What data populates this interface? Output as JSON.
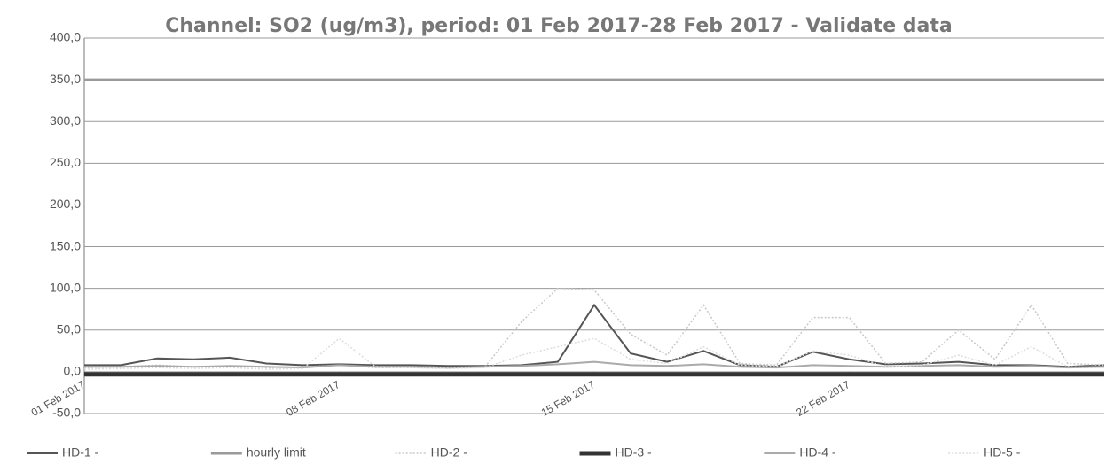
{
  "chart_data": {
    "type": "line",
    "title": "Channel: SO2 (ug/m3), period: 01 Feb 2017-28 Feb 2017 - Validate data",
    "x": [
      0,
      1,
      2,
      3,
      4,
      5,
      6,
      7,
      8,
      9,
      10,
      11,
      12,
      13,
      14,
      15,
      16,
      17,
      18,
      19,
      20,
      21,
      22,
      23,
      24,
      25,
      26,
      27,
      28
    ],
    "xlim": [
      0,
      28
    ],
    "xticks": [
      {
        "value": 0,
        "label": "01 Feb 2017"
      },
      {
        "value": 7,
        "label": "08 Feb 2017"
      },
      {
        "value": 14,
        "label": "15 Feb 2017"
      },
      {
        "value": 21,
        "label": "22 Feb 2017"
      }
    ],
    "ylim": [
      -50,
      400
    ],
    "yticks": [
      {
        "value": -50,
        "label": "-50,0"
      },
      {
        "value": 0,
        "label": "0,0"
      },
      {
        "value": 50,
        "label": "50,0"
      },
      {
        "value": 100,
        "label": "100,0"
      },
      {
        "value": 150,
        "label": "150,0"
      },
      {
        "value": 200,
        "label": "200,0"
      },
      {
        "value": 250,
        "label": "250,0"
      },
      {
        "value": 300,
        "label": "300,0"
      },
      {
        "value": 350,
        "label": "350,0"
      },
      {
        "value": 400,
        "label": "400,0"
      }
    ],
    "grid": true,
    "legend": "bottom",
    "series": [
      {
        "name": "HD-1 -",
        "color": "#555555",
        "values": [
          8,
          8,
          16,
          15,
          17,
          10,
          8,
          9,
          8,
          8,
          7,
          7,
          8,
          12,
          80,
          22,
          12,
          25,
          8,
          6,
          24,
          15,
          9,
          10,
          12,
          8,
          8,
          6,
          8
        ]
      },
      {
        "name": "hourly limit",
        "color": "#9a9a9a",
        "values": [
          350,
          350,
          350,
          350,
          350,
          350,
          350,
          350,
          350,
          350,
          350,
          350,
          350,
          350,
          350,
          350,
          350,
          350,
          350,
          350,
          350,
          350,
          350,
          350,
          350,
          350,
          350,
          350,
          350
        ]
      },
      {
        "name": "HD-2 -",
        "color": "#c8c8c8",
        "values": [
          5,
          6,
          8,
          6,
          7,
          5,
          6,
          8,
          5,
          5,
          4,
          6,
          60,
          100,
          98,
          45,
          20,
          80,
          10,
          8,
          65,
          65,
          10,
          12,
          50,
          15,
          80,
          10,
          8
        ]
      },
      {
        "name": "HD-3 -",
        "color": "#333333",
        "values": [
          -3,
          -3,
          -3,
          -3,
          -3,
          -3,
          -3,
          -3,
          -3,
          -3,
          -3,
          -3,
          -3,
          -3,
          -3,
          -3,
          -3,
          -3,
          -3,
          -3,
          -3,
          -3,
          -3,
          -3,
          -3,
          -3,
          -3,
          -3,
          -3
        ]
      },
      {
        "name": "HD-4 -",
        "color": "#aaaaaa",
        "values": [
          6,
          6,
          7,
          6,
          7,
          6,
          5,
          8,
          6,
          6,
          5,
          6,
          7,
          9,
          12,
          8,
          7,
          9,
          6,
          5,
          8,
          7,
          6,
          7,
          8,
          6,
          7,
          5,
          6
        ]
      },
      {
        "name": "HD-5 -",
        "color": "#dddddd",
        "values": [
          3,
          4,
          5,
          4,
          5,
          3,
          4,
          40,
          6,
          5,
          4,
          5,
          20,
          30,
          40,
          15,
          10,
          30,
          8,
          6,
          25,
          20,
          6,
          8,
          20,
          8,
          30,
          6,
          5
        ]
      }
    ]
  }
}
